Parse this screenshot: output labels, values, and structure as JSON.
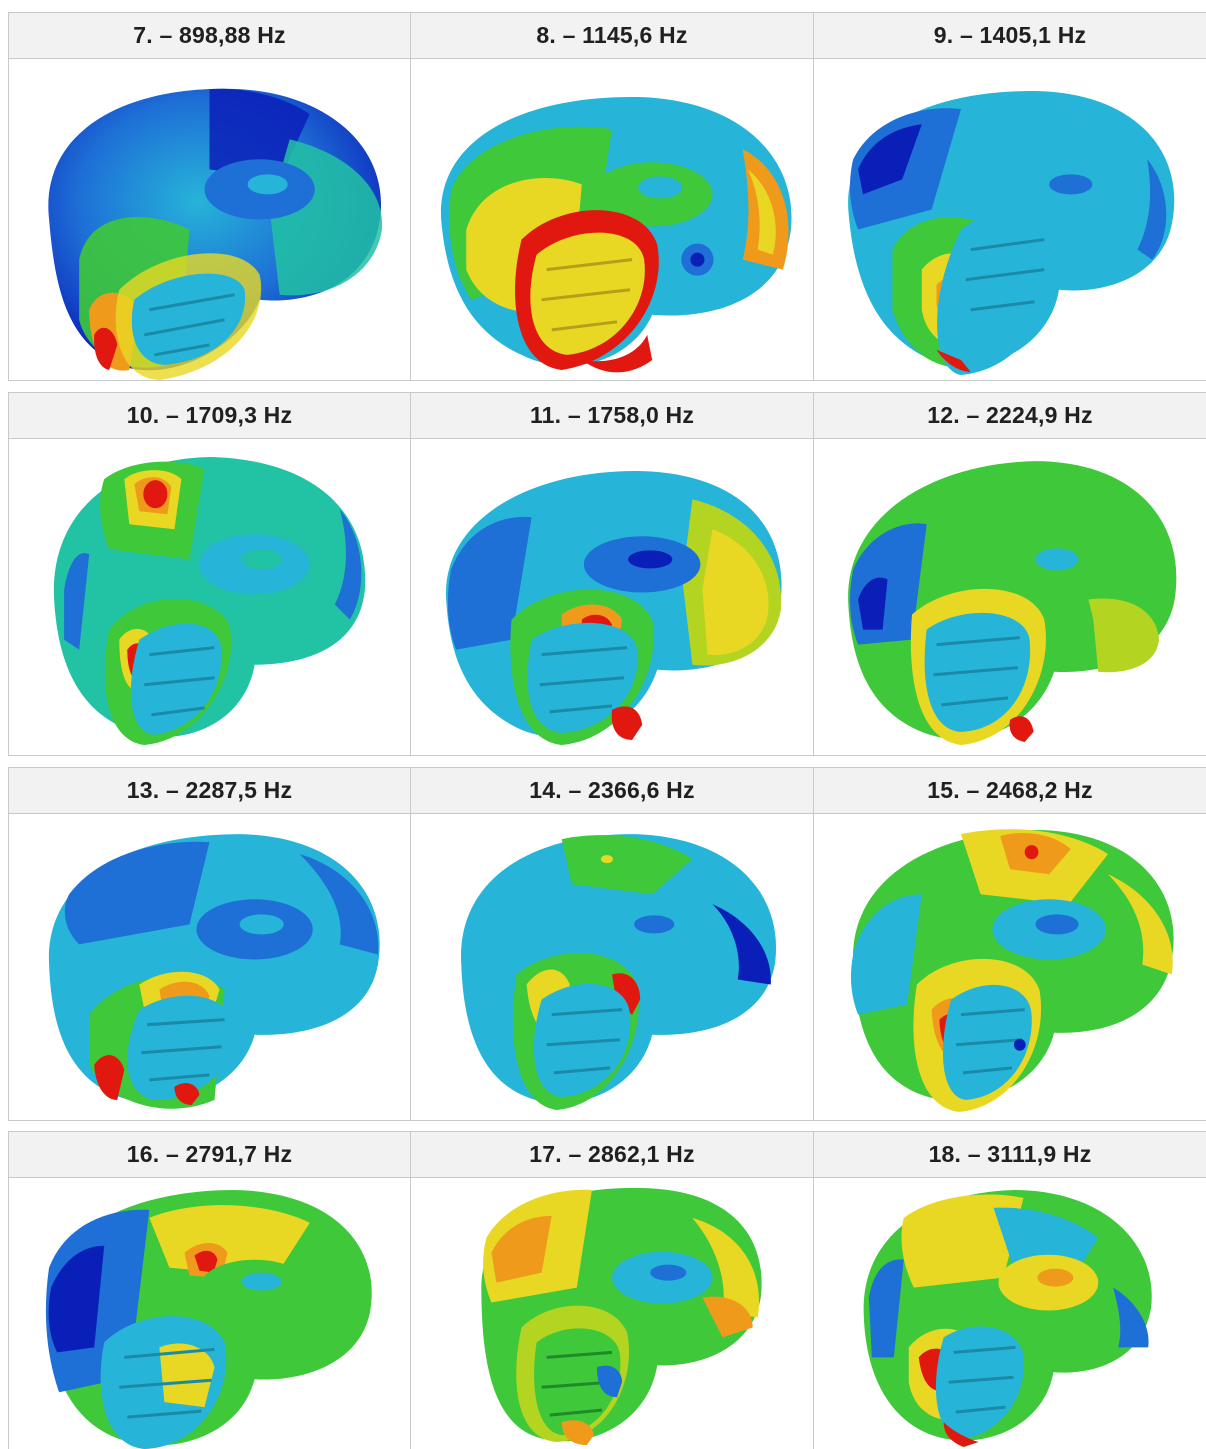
{
  "rows": [
    {
      "cells": [
        {
          "label": "7. – 898,88 Hz"
        },
        {
          "label": "8. – 1145,6 Hz"
        },
        {
          "label": "9. – 1405,1 Hz"
        }
      ]
    },
    {
      "cells": [
        {
          "label": "10. – 1709,3 Hz"
        },
        {
          "label": "11. – 1758,0 Hz"
        },
        {
          "label": "12. – 2224,9 Hz"
        }
      ]
    },
    {
      "cells": [
        {
          "label": "13. – 2287,5 Hz"
        },
        {
          "label": "14. – 2366,6 Hz"
        },
        {
          "label": "15. – 2468,2 Hz"
        }
      ]
    },
    {
      "cells": [
        {
          "label": "16. – 2791,7 Hz"
        },
        {
          "label": "17. – 2862,1 Hz"
        },
        {
          "label": "18. – 3111,9 Hz"
        }
      ]
    }
  ],
  "palette": {
    "blue_dark": "#0a1fb8",
    "blue": "#1e6fd6",
    "cyan": "#26b4d8",
    "teal": "#22c2a4",
    "green": "#3ec83a",
    "yellow_green": "#b4d422",
    "yellow": "#e8d824",
    "orange": "#f09a1c",
    "red": "#e01810",
    "border": "#c9c9c9",
    "header_bg": "#f2f2f2"
  },
  "icons": {
    "shape": "mode-shape-render"
  }
}
